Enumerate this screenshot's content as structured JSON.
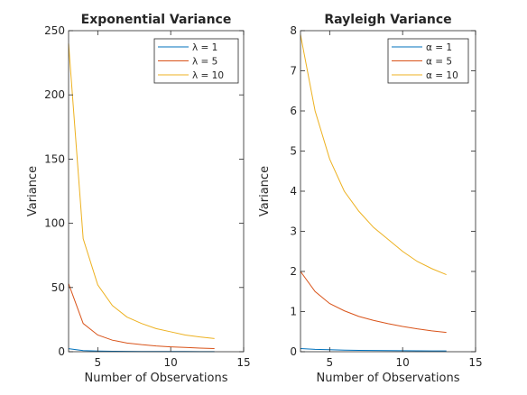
{
  "chart_data": [
    {
      "type": "line",
      "title": "Exponential Variance",
      "xlabel": "Number of Observations",
      "ylabel": "Variance",
      "xlim": [
        3,
        15
      ],
      "ylim": [
        0,
        250
      ],
      "xticks": [
        "5",
        "10",
        "15"
      ],
      "yticks": [
        "0",
        "50",
        "100",
        "150",
        "200",
        "250"
      ],
      "legend": "top-right",
      "x": [
        3,
        4,
        5,
        6,
        7,
        8,
        9,
        10,
        11,
        12,
        13
      ],
      "series": [
        {
          "name": "λ = 1",
          "legend_prefix": "λ",
          "legend_suffix": " = 1",
          "color": "#0072BD",
          "values": [
            2.4,
            0.88,
            0.52,
            0.36,
            0.27,
            0.22,
            0.18,
            0.15,
            0.13,
            0.11,
            0.1
          ]
        },
        {
          "name": "λ = 5",
          "legend_prefix": "λ",
          "legend_suffix": " = 5",
          "color": "#D95319",
          "values": [
            53,
            22,
            13,
            9,
            6.8,
            5.5,
            4.5,
            3.8,
            3.3,
            2.8,
            2.5
          ]
        },
        {
          "name": "λ = 10",
          "legend_prefix": "λ",
          "legend_suffix": " = 10",
          "color": "#EDB120",
          "values": [
            240,
            88,
            52,
            36,
            27,
            22,
            18,
            15.5,
            13,
            11.5,
            10.3
          ]
        }
      ]
    },
    {
      "type": "line",
      "title": "Rayleigh Variance",
      "xlabel": "Number of Observations",
      "ylabel": "Variance",
      "xlim": [
        3,
        15
      ],
      "ylim": [
        0,
        8
      ],
      "xticks": [
        "5",
        "10",
        "15"
      ],
      "yticks": [
        "0",
        "1",
        "2",
        "3",
        "4",
        "5",
        "6",
        "7",
        "8"
      ],
      "legend": "top-right",
      "x": [
        3,
        4,
        5,
        6,
        7,
        8,
        9,
        10,
        11,
        12,
        13
      ],
      "series": [
        {
          "name": "α = 1",
          "legend_prefix": "α",
          "legend_suffix": " = 1",
          "color": "#0072BD",
          "values": [
            0.08,
            0.06,
            0.05,
            0.04,
            0.035,
            0.03,
            0.027,
            0.024,
            0.022,
            0.02,
            0.019
          ]
        },
        {
          "name": "α = 5",
          "legend_prefix": "α",
          "legend_suffix": " = 5",
          "color": "#D95319",
          "values": [
            2.0,
            1.5,
            1.2,
            1.02,
            0.88,
            0.78,
            0.7,
            0.63,
            0.57,
            0.52,
            0.48
          ]
        },
        {
          "name": "α = 10",
          "legend_prefix": "α",
          "legend_suffix": " = 10",
          "color": "#EDB120",
          "values": [
            7.9,
            6.0,
            4.8,
            4.0,
            3.5,
            3.1,
            2.8,
            2.5,
            2.25,
            2.07,
            1.92
          ]
        }
      ]
    }
  ]
}
